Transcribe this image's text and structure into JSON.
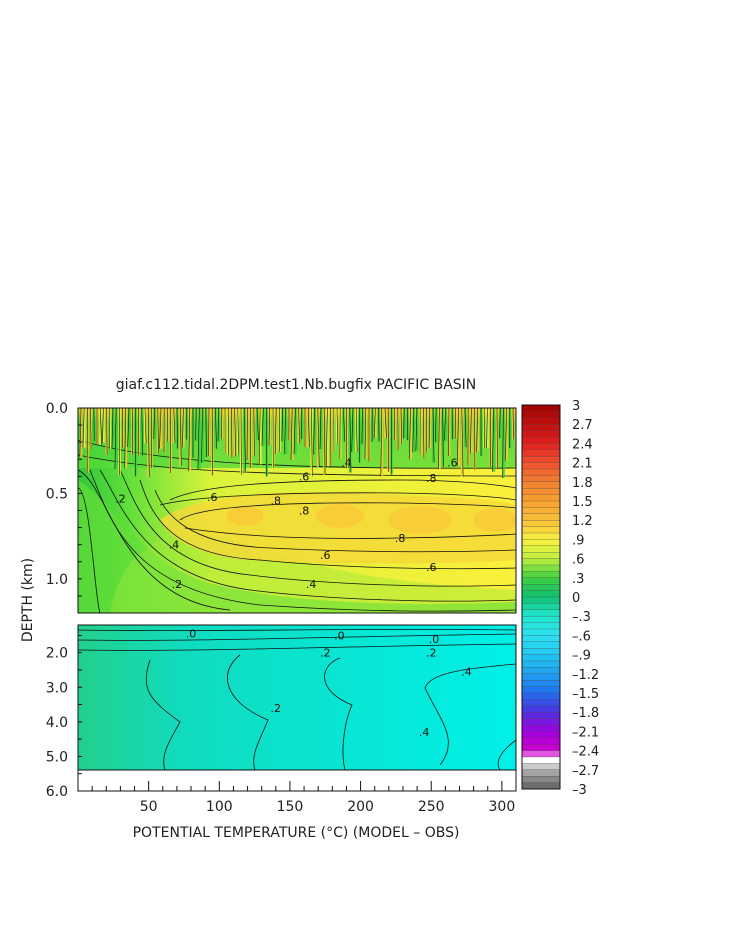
{
  "chart_data": {
    "type": "heatmap",
    "title": "giaf.c112.tidal.2DPM.test1.Nb.bugfix PACIFIC BASIN",
    "xlabel": "POTENTIAL TEMPERATURE (°C) (MODEL – OBS)",
    "ylabel": "DEPTH (km)",
    "xlim": [
      0,
      310
    ],
    "x_ticks": [
      50,
      100,
      150,
      200,
      250,
      300
    ],
    "x_tick_labels": [
      "50",
      "100",
      "150",
      "200",
      "250",
      "300"
    ],
    "upper_panel": {
      "ylim": [
        0.0,
        1.2
      ],
      "y_ticks": [
        0.0,
        0.5,
        1.0
      ],
      "y_tick_labels": [
        "0.0",
        "0.5",
        "1.0"
      ]
    },
    "lower_panel": {
      "ylim": [
        1.2,
        6.0
      ],
      "y_ticks": [
        2.0,
        3.0,
        4.0,
        5.0,
        6.0
      ],
      "y_tick_labels": [
        "2.0",
        "3.0",
        "4.0",
        "5.0",
        "6.0"
      ]
    },
    "colorbar": {
      "min": -3,
      "max": 3,
      "labels": [
        "3",
        "2.7",
        "2.4",
        "2.1",
        "1.8",
        "1.5",
        "1.2",
        ".9",
        ".6",
        ".3",
        "0",
        "–.3",
        "–.6",
        "–.9",
        "–1.2",
        "–1.5",
        "–1.8",
        "–2.1",
        "–2.4",
        "–2.7",
        "–3"
      ]
    },
    "contour_labels": [
      {
        "text": ".4",
        "x": 190,
        "y": 0.32
      },
      {
        "text": ".6",
        "x": 265,
        "y": 0.32
      },
      {
        "text": ".6",
        "x": 160,
        "y": 0.4
      },
      {
        "text": ".8",
        "x": 250,
        "y": 0.41
      },
      {
        "text": ".2",
        "x": 30,
        "y": 0.53
      },
      {
        "text": ".6",
        "x": 95,
        "y": 0.52
      },
      {
        "text": ".8",
        "x": 140,
        "y": 0.54
      },
      {
        "text": ".8",
        "x": 160,
        "y": 0.6
      },
      {
        "text": ".8",
        "x": 228,
        "y": 0.76
      },
      {
        "text": ".4",
        "x": 68,
        "y": 0.8
      },
      {
        "text": ".6",
        "x": 175,
        "y": 0.86
      },
      {
        "text": ".6",
        "x": 250,
        "y": 0.93
      },
      {
        "text": ".2",
        "x": 70,
        "y": 1.03
      },
      {
        "text": ".4",
        "x": 165,
        "y": 1.03
      },
      {
        "text": ".0",
        "x": 80,
        "y": 1.45
      },
      {
        "text": ".0",
        "x": 185,
        "y": 1.5
      },
      {
        "text": ".0",
        "x": 252,
        "y": 1.6
      },
      {
        "text": ".2",
        "x": 175,
        "y": 2.0
      },
      {
        "text": ".2",
        "x": 250,
        "y": 2.0
      },
      {
        "text": ".4",
        "x": 275,
        "y": 2.55
      },
      {
        "text": ".2",
        "x": 140,
        "y": 3.6
      },
      {
        "text": ".4",
        "x": 245,
        "y": 4.3
      }
    ]
  }
}
